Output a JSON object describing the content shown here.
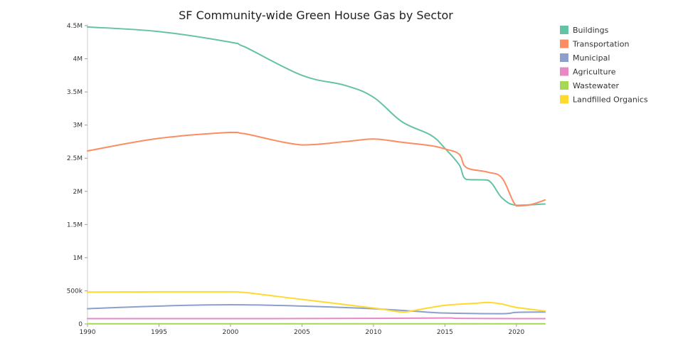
{
  "chart_data": {
    "type": "line",
    "title": "SF Community-wide Green House Gas by Sector",
    "xlabel": "",
    "ylabel": "",
    "xlim": [
      1990,
      2022
    ],
    "ylim": [
      0,
      4500000
    ],
    "x_ticks": [
      1990,
      1995,
      2000,
      2005,
      2010,
      2015,
      2020
    ],
    "x_tick_labels": [
      "1990",
      "1995",
      "2000",
      "2005",
      "2010",
      "2015",
      "2020"
    ],
    "y_ticks": [
      0,
      500000,
      1000000,
      1500000,
      2000000,
      2500000,
      3000000,
      3500000,
      4000000,
      4500000
    ],
    "y_tick_labels": [
      "0",
      "500k",
      "1M",
      "1.5M",
      "2M",
      "2.5M",
      "3M",
      "3.5M",
      "4M",
      "4.5M"
    ],
    "grid": false,
    "legend_position": "top-right",
    "series": [
      {
        "name": "Buildings",
        "color": "#66c2a5",
        "points": [
          [
            1990,
            4480000
          ],
          [
            1995,
            4410000
          ],
          [
            2000,
            4250000
          ],
          [
            2001,
            4180000
          ],
          [
            2005,
            3750000
          ],
          [
            2008,
            3600000
          ],
          [
            2010,
            3420000
          ],
          [
            2012,
            3050000
          ],
          [
            2014,
            2850000
          ],
          [
            2015,
            2650000
          ],
          [
            2016,
            2400000
          ],
          [
            2016.5,
            2180000
          ],
          [
            2018,
            2170000
          ],
          [
            2019,
            1900000
          ],
          [
            2020,
            1790000
          ],
          [
            2022,
            1810000
          ]
        ]
      },
      {
        "name": "Transportation",
        "color": "#fc8d62",
        "points": [
          [
            1990,
            2610000
          ],
          [
            1995,
            2800000
          ],
          [
            2000,
            2890000
          ],
          [
            2001,
            2870000
          ],
          [
            2005,
            2700000
          ],
          [
            2008,
            2750000
          ],
          [
            2010,
            2790000
          ],
          [
            2012,
            2740000
          ],
          [
            2014,
            2690000
          ],
          [
            2015,
            2640000
          ],
          [
            2016,
            2560000
          ],
          [
            2016.5,
            2360000
          ],
          [
            2018,
            2290000
          ],
          [
            2019,
            2200000
          ],
          [
            2020,
            1780000
          ],
          [
            2021,
            1800000
          ],
          [
            2022,
            1870000
          ]
        ]
      },
      {
        "name": "Municipal",
        "color": "#8da0cb",
        "points": [
          [
            1990,
            230000
          ],
          [
            1995,
            270000
          ],
          [
            2000,
            290000
          ],
          [
            2005,
            270000
          ],
          [
            2010,
            230000
          ],
          [
            2013,
            190000
          ],
          [
            2015,
            165000
          ],
          [
            2019,
            155000
          ],
          [
            2020,
            175000
          ],
          [
            2022,
            180000
          ]
        ]
      },
      {
        "name": "Agriculture",
        "color": "#e78ac3",
        "points": [
          [
            1990,
            80000
          ],
          [
            1995,
            80000
          ],
          [
            2000,
            80000
          ],
          [
            2005,
            82000
          ],
          [
            2010,
            85000
          ],
          [
            2015,
            90000
          ],
          [
            2016,
            85000
          ],
          [
            2020,
            80000
          ],
          [
            2022,
            80000
          ]
        ]
      },
      {
        "name": "Wastewater",
        "color": "#a6d854",
        "points": [
          [
            1990,
            2000
          ],
          [
            1995,
            2000
          ],
          [
            2000,
            2000
          ],
          [
            2005,
            2000
          ],
          [
            2010,
            2000
          ],
          [
            2015,
            2000
          ],
          [
            2020,
            2000
          ],
          [
            2022,
            2000
          ]
        ]
      },
      {
        "name": "Landfilled Organics",
        "color": "#ffd92f",
        "points": [
          [
            1990,
            480000
          ],
          [
            1995,
            485000
          ],
          [
            2000,
            485000
          ],
          [
            2001,
            475000
          ],
          [
            2005,
            370000
          ],
          [
            2010,
            240000
          ],
          [
            2012,
            180000
          ],
          [
            2013,
            210000
          ],
          [
            2015,
            280000
          ],
          [
            2017,
            310000
          ],
          [
            2018,
            325000
          ],
          [
            2019,
            300000
          ],
          [
            2020,
            250000
          ],
          [
            2022,
            195000
          ]
        ]
      }
    ]
  }
}
